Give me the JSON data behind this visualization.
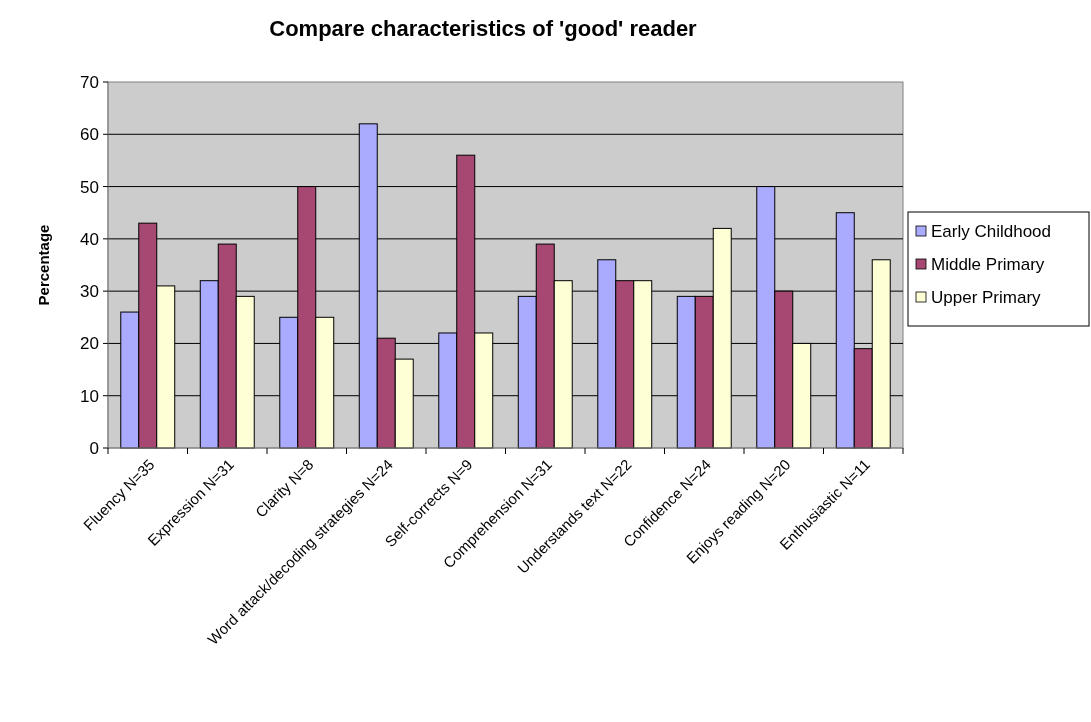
{
  "chart_data": {
    "type": "bar",
    "title": "Compare characteristics of 'good' reader",
    "ylabel": "Percentage",
    "categories": [
      "Fluency N=35",
      "Expression N=31",
      "Clarity N=8",
      "Word attack/decoding strategies N=24",
      "Self-corrects N=9",
      "Comprehension N=31",
      "Understands text N=22",
      "Confidence N=24",
      "Enjoys reading N=20",
      "Enthusiastic N=11"
    ],
    "series": [
      {
        "name": "Early Childhood",
        "color": "#aaaaff",
        "values": [
          26,
          32,
          25,
          62,
          22,
          29,
          36,
          29,
          50,
          45
        ]
      },
      {
        "name": "Middle Primary",
        "color": "#a64872",
        "values": [
          43,
          39,
          50,
          21,
          56,
          39,
          32,
          29,
          30,
          19
        ]
      },
      {
        "name": "Upper Primary",
        "color": "#ffffd6",
        "values": [
          31,
          29,
          25,
          17,
          22,
          32,
          32,
          42,
          20,
          36
        ]
      }
    ],
    "ylim": [
      0,
      70
    ],
    "yticks": [
      0,
      10,
      20,
      30,
      40,
      50,
      60,
      70
    ],
    "grid": "y",
    "legend": "right"
  }
}
